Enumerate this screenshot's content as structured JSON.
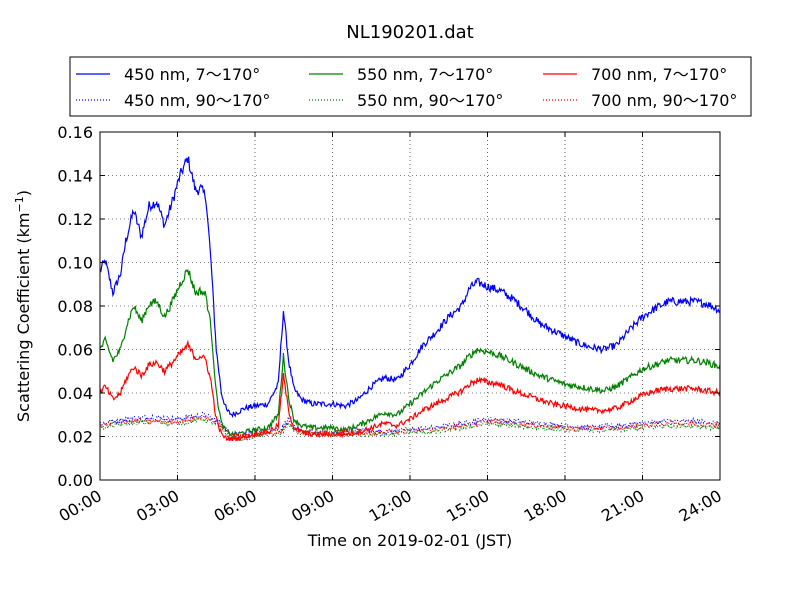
{
  "chart_data": {
    "type": "line",
    "title": "NL190201.dat",
    "xlabel": "Time on 2019-02-01 (JST)",
    "ylabel_main": "Scattering Coefficient (km",
    "ylabel_sup": "−1",
    "ylabel_end": ")",
    "xlim": [
      0,
      24
    ],
    "ylim": [
      0,
      0.16
    ],
    "x_ticks": [
      0,
      3,
      6,
      9,
      12,
      15,
      18,
      21,
      24
    ],
    "x_tick_labels": [
      "00:00",
      "03:00",
      "06:00",
      "09:00",
      "12:00",
      "15:00",
      "18:00",
      "21:00",
      "24:00"
    ],
    "y_ticks": [
      0,
      0.02,
      0.04,
      0.06,
      0.08,
      0.1,
      0.12,
      0.14,
      0.16
    ],
    "y_tick_labels": [
      "0.00",
      "0.02",
      "0.04",
      "0.06",
      "0.08",
      "0.10",
      "0.12",
      "0.14",
      "0.16"
    ],
    "grid": true,
    "legend_position": "top",
    "series": [
      {
        "name": "450 nm, 7～170°",
        "color": "#0000ff",
        "style": "solid",
        "x": [
          0,
          0.2,
          0.5,
          0.8,
          1.0,
          1.3,
          1.6,
          1.9,
          2.2,
          2.5,
          2.8,
          3.1,
          3.4,
          3.7,
          3.9,
          4.1,
          4.3,
          4.5,
          4.7,
          4.9,
          5.1,
          5.3,
          5.6,
          6.0,
          6.5,
          6.9,
          7.1,
          7.3,
          7.5,
          7.8,
          8.2,
          8.6,
          9.0,
          9.5,
          10.0,
          10.5,
          11.0,
          11.5,
          12.0,
          12.5,
          13.0,
          13.5,
          14.0,
          14.3,
          14.6,
          15.0,
          15.5,
          16.0,
          16.5,
          17.0,
          17.5,
          18.0,
          18.5,
          19.0,
          19.5,
          20.0,
          20.5,
          21.0,
          21.5,
          22.0,
          22.5,
          23.0,
          23.5,
          24.0
        ],
        "y": [
          0.096,
          0.101,
          0.086,
          0.095,
          0.11,
          0.124,
          0.112,
          0.126,
          0.128,
          0.117,
          0.128,
          0.14,
          0.148,
          0.133,
          0.134,
          0.13,
          0.1,
          0.06,
          0.04,
          0.032,
          0.03,
          0.031,
          0.033,
          0.034,
          0.035,
          0.044,
          0.078,
          0.055,
          0.042,
          0.037,
          0.035,
          0.035,
          0.035,
          0.034,
          0.037,
          0.043,
          0.047,
          0.046,
          0.053,
          0.062,
          0.068,
          0.075,
          0.08,
          0.088,
          0.091,
          0.089,
          0.087,
          0.083,
          0.078,
          0.072,
          0.069,
          0.066,
          0.063,
          0.061,
          0.06,
          0.062,
          0.069,
          0.075,
          0.079,
          0.082,
          0.082,
          0.082,
          0.081,
          0.078
        ]
      },
      {
        "name": "450 nm, 90～170°",
        "color": "#0000ff",
        "style": "dotted",
        "x": [
          0,
          1,
          2,
          3,
          4,
          4.6,
          5.0,
          5.5,
          6.0,
          6.5,
          7.0,
          7.3,
          7.6,
          8.0,
          9,
          10,
          11,
          12,
          13,
          14,
          15,
          16,
          17,
          18,
          19,
          20,
          21,
          22,
          23,
          24
        ],
        "y": [
          0.026,
          0.028,
          0.029,
          0.028,
          0.03,
          0.027,
          0.022,
          0.021,
          0.022,
          0.023,
          0.023,
          0.028,
          0.024,
          0.022,
          0.022,
          0.023,
          0.022,
          0.023,
          0.024,
          0.026,
          0.028,
          0.027,
          0.026,
          0.025,
          0.024,
          0.025,
          0.026,
          0.027,
          0.027,
          0.026
        ]
      },
      {
        "name": "550 nm, 7～170°",
        "color": "#008000",
        "style": "solid",
        "x": [
          0,
          0.2,
          0.5,
          0.8,
          1.0,
          1.3,
          1.6,
          1.9,
          2.2,
          2.5,
          2.8,
          3.1,
          3.4,
          3.7,
          3.9,
          4.1,
          4.3,
          4.5,
          4.7,
          4.9,
          5.1,
          5.3,
          5.6,
          6.0,
          6.5,
          6.9,
          7.1,
          7.3,
          7.5,
          7.8,
          8.2,
          8.6,
          9.0,
          9.5,
          10.0,
          10.5,
          11.0,
          11.5,
          12.0,
          12.5,
          13.0,
          13.5,
          14.0,
          14.3,
          14.6,
          15.0,
          15.5,
          16.0,
          16.5,
          17.0,
          17.5,
          18.0,
          18.5,
          19.0,
          19.5,
          20.0,
          20.5,
          21.0,
          21.5,
          22.0,
          22.5,
          23.0,
          23.5,
          24.0
        ],
        "y": [
          0.06,
          0.064,
          0.055,
          0.06,
          0.07,
          0.08,
          0.073,
          0.081,
          0.082,
          0.075,
          0.082,
          0.09,
          0.097,
          0.086,
          0.087,
          0.085,
          0.07,
          0.04,
          0.026,
          0.022,
          0.021,
          0.021,
          0.022,
          0.023,
          0.024,
          0.03,
          0.057,
          0.038,
          0.028,
          0.025,
          0.024,
          0.024,
          0.024,
          0.023,
          0.025,
          0.028,
          0.031,
          0.03,
          0.035,
          0.04,
          0.045,
          0.049,
          0.053,
          0.057,
          0.06,
          0.059,
          0.057,
          0.054,
          0.051,
          0.048,
          0.046,
          0.044,
          0.043,
          0.042,
          0.041,
          0.043,
          0.047,
          0.051,
          0.053,
          0.055,
          0.055,
          0.055,
          0.054,
          0.052
        ]
      },
      {
        "name": "550 nm, 90～170°",
        "color": "#008000",
        "style": "dotted",
        "x": [
          0,
          1,
          2,
          3,
          4,
          4.6,
          5.0,
          5.5,
          6.0,
          6.5,
          7.0,
          7.3,
          7.6,
          8.0,
          9,
          10,
          11,
          12,
          13,
          14,
          15,
          16,
          17,
          18,
          19,
          20,
          21,
          22,
          23,
          24
        ],
        "y": [
          0.024,
          0.026,
          0.027,
          0.026,
          0.028,
          0.025,
          0.02,
          0.019,
          0.02,
          0.021,
          0.021,
          0.026,
          0.022,
          0.021,
          0.021,
          0.021,
          0.021,
          0.022,
          0.022,
          0.024,
          0.026,
          0.025,
          0.024,
          0.023,
          0.023,
          0.023,
          0.024,
          0.025,
          0.025,
          0.024
        ]
      },
      {
        "name": "700 nm, 7～170°",
        "color": "#ff0000",
        "style": "solid",
        "x": [
          0,
          0.2,
          0.5,
          0.8,
          1.0,
          1.3,
          1.6,
          1.9,
          2.2,
          2.5,
          2.8,
          3.1,
          3.4,
          3.7,
          3.9,
          4.1,
          4.3,
          4.5,
          4.7,
          4.9,
          5.1,
          5.3,
          5.6,
          6.0,
          6.5,
          6.9,
          7.1,
          7.3,
          7.5,
          7.8,
          8.2,
          8.6,
          9.0,
          9.5,
          10.0,
          10.5,
          11.0,
          11.5,
          12.0,
          12.5,
          13.0,
          13.5,
          14.0,
          14.3,
          14.6,
          15.0,
          15.5,
          16.0,
          16.5,
          17.0,
          17.5,
          18.0,
          18.5,
          19.0,
          19.5,
          20.0,
          20.5,
          21.0,
          21.5,
          22.0,
          22.5,
          23.0,
          23.5,
          24.0
        ],
        "y": [
          0.04,
          0.043,
          0.037,
          0.04,
          0.046,
          0.052,
          0.048,
          0.053,
          0.054,
          0.05,
          0.054,
          0.058,
          0.062,
          0.056,
          0.057,
          0.055,
          0.045,
          0.028,
          0.021,
          0.019,
          0.019,
          0.019,
          0.02,
          0.021,
          0.022,
          0.025,
          0.048,
          0.032,
          0.024,
          0.022,
          0.021,
          0.021,
          0.021,
          0.021,
          0.022,
          0.024,
          0.026,
          0.025,
          0.028,
          0.032,
          0.035,
          0.038,
          0.041,
          0.044,
          0.046,
          0.045,
          0.044,
          0.041,
          0.039,
          0.037,
          0.035,
          0.034,
          0.033,
          0.032,
          0.032,
          0.033,
          0.036,
          0.039,
          0.041,
          0.042,
          0.042,
          0.042,
          0.041,
          0.04
        ]
      },
      {
        "name": "700 nm, 90～170°",
        "color": "#ff0000",
        "style": "dotted",
        "x": [
          0,
          1,
          2,
          3,
          4,
          4.6,
          5.0,
          5.5,
          6.0,
          6.5,
          7.0,
          7.3,
          7.6,
          8.0,
          9,
          10,
          11,
          12,
          13,
          14,
          15,
          16,
          17,
          18,
          19,
          20,
          21,
          22,
          23,
          24
        ],
        "y": [
          0.025,
          0.027,
          0.027,
          0.027,
          0.029,
          0.026,
          0.021,
          0.02,
          0.021,
          0.022,
          0.022,
          0.027,
          0.023,
          0.022,
          0.022,
          0.022,
          0.022,
          0.023,
          0.023,
          0.025,
          0.027,
          0.026,
          0.025,
          0.024,
          0.024,
          0.024,
          0.025,
          0.026,
          0.026,
          0.025
        ]
      }
    ]
  }
}
